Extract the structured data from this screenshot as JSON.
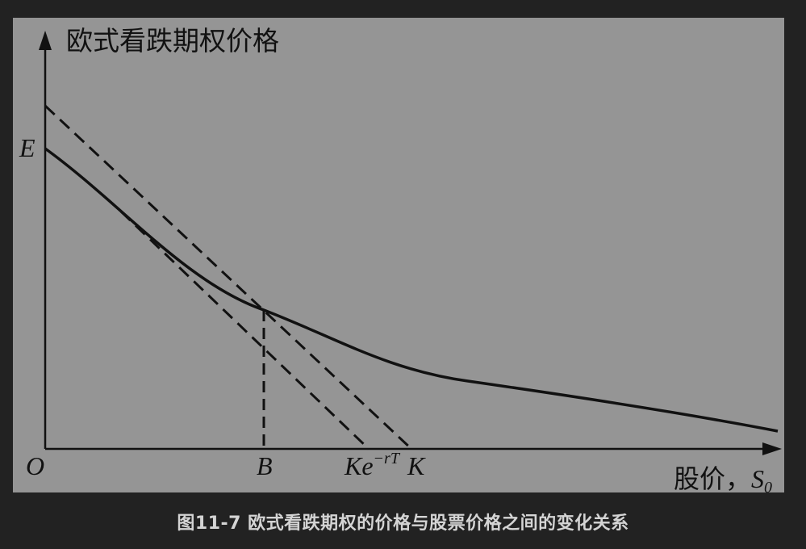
{
  "diagram": {
    "y_axis_label": "欧式看跌期权价格",
    "x_axis_label": "股价，",
    "x_axis_symbol": "S",
    "x_axis_subscript": "0",
    "origin_label": "O",
    "y_intercept_label": "E",
    "point_b_label": "B",
    "ke_label_base": "Ke",
    "ke_label_exponent": "−rT",
    "k_label": "K"
  },
  "caption": "图11-7 欧式看跌期权的价格与股票价格之间的变化关系"
}
